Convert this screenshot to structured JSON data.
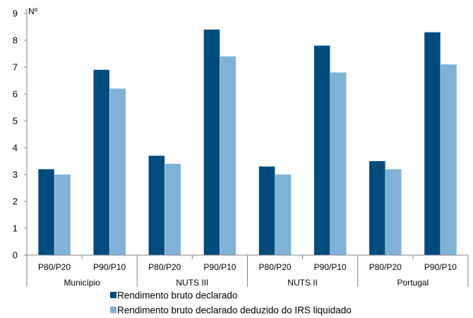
{
  "chart_data": {
    "type": "bar",
    "ylabel": "Nº",
    "ylim": [
      0,
      9
    ],
    "yticks": [
      0,
      1,
      2,
      3,
      4,
      5,
      6,
      7,
      8,
      9
    ],
    "grid": false,
    "legend_position": "bottom",
    "groups": [
      {
        "label": "Município",
        "categories": [
          "P80/P20",
          "P90/P10"
        ]
      },
      {
        "label": "NUTS III",
        "categories": [
          "P80/P20",
          "P90/P10"
        ]
      },
      {
        "label": "NUTS II",
        "categories": [
          "P80/P20",
          "P90/P10"
        ]
      },
      {
        "label": "Portugal",
        "categories": [
          "P80/P20",
          "P90/P10"
        ]
      }
    ],
    "series": [
      {
        "name": "Rendimento bruto declarado",
        "color": "#004B7E",
        "values": [
          3.2,
          6.9,
          3.7,
          8.4,
          3.3,
          7.8,
          3.5,
          8.3
        ]
      },
      {
        "name": "Rendimento bruto declarado deduzido do IRS liquidado",
        "color": "#7FB2D6",
        "values": [
          3.0,
          6.2,
          3.4,
          7.4,
          3.0,
          6.8,
          3.2,
          7.1
        ]
      }
    ]
  }
}
